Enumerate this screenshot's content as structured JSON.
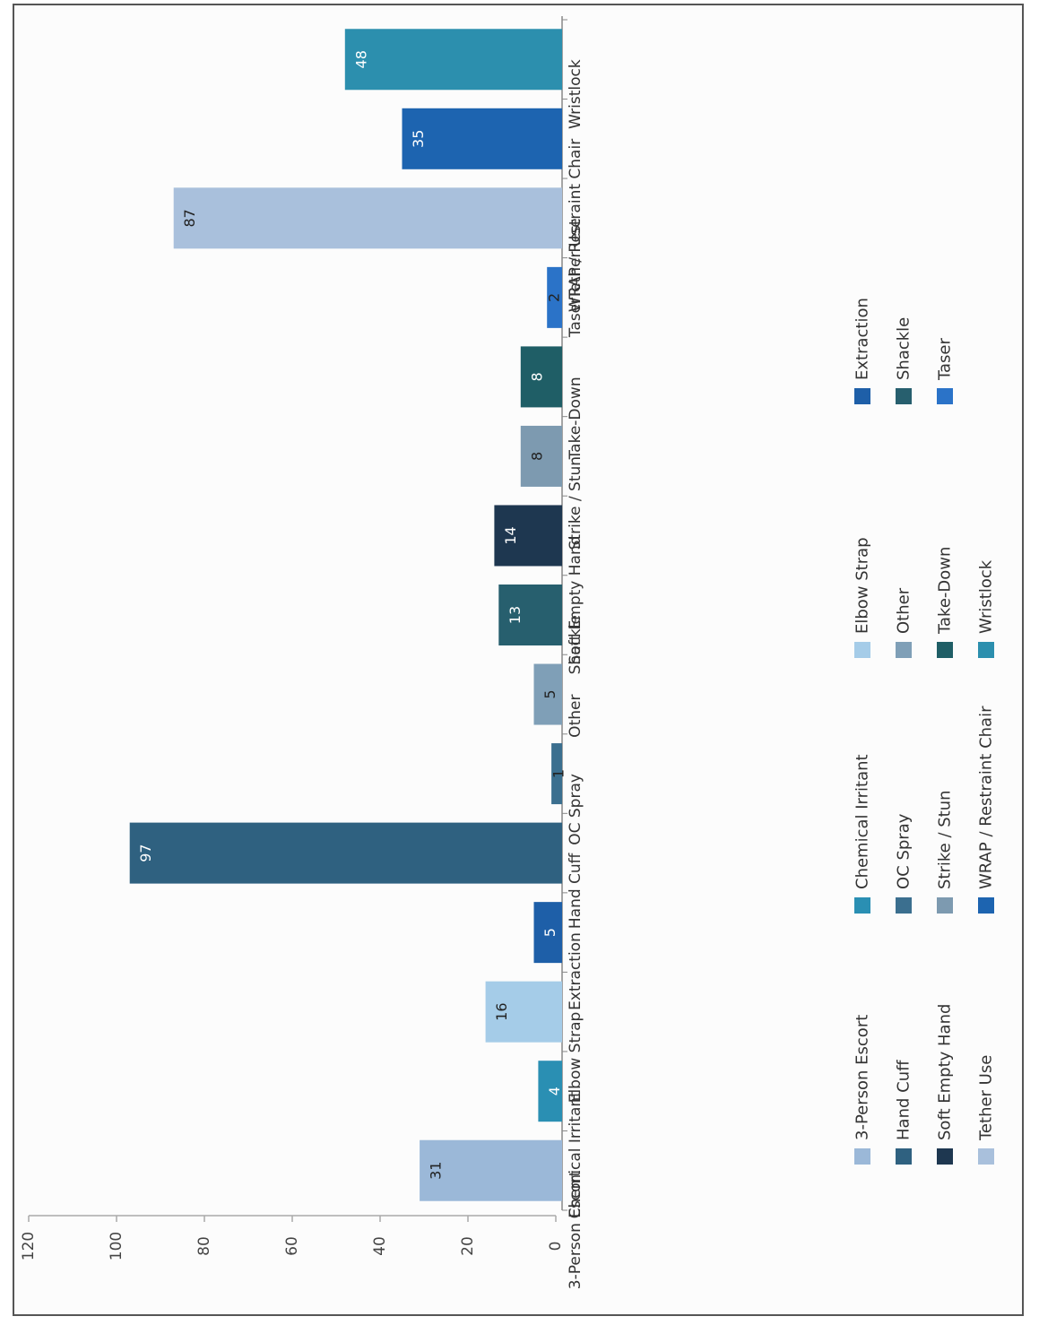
{
  "chart_data": {
    "type": "bar",
    "orientation": "rotated-90",
    "categories": [
      "3-Person Escort",
      "Chemical Irritant",
      "Elbow Strap",
      "Extraction",
      "Hand Cuff",
      "OC Spray",
      "Other",
      "Shackle",
      "Soft Empty Hand",
      "Strike / Stun",
      "Take-Down",
      "Taser",
      "Tether Use",
      "WRAP / Restraint Chair",
      "Wristlock"
    ],
    "values": [
      31,
      4,
      16,
      5,
      97,
      1,
      5,
      13,
      14,
      8,
      8,
      2,
      87,
      35,
      48
    ],
    "value_labels": [
      "31",
      "4",
      "16",
      "5",
      "97",
      "1",
      "5",
      "13",
      "14",
      "8",
      "8",
      "2",
      "87",
      "35",
      "48"
    ],
    "colors": [
      "#9bb8d8",
      "#2a8fb3",
      "#a5cce8",
      "#1e5fa8",
      "#2f6180",
      "#3b6f8f",
      "#7f9fb7",
      "#275f6e",
      "#1e3750",
      "#7d9ab0",
      "#1f5e66",
      "#2b73c8",
      "#a9c0dc",
      "#1d64b0",
      "#2c8fae"
    ],
    "ylim": [
      0,
      120
    ],
    "yticks": [
      "0",
      "20",
      "40",
      "60",
      "80",
      "100",
      "120"
    ],
    "grid": false,
    "legend_position": "bottom",
    "legend": [
      {
        "label": "3-Person Escort",
        "color": "#9bb8d8"
      },
      {
        "label": "Hand Cuff",
        "color": "#2f6180"
      },
      {
        "label": "Soft Empty Hand",
        "color": "#1e3750"
      },
      {
        "label": "Tether Use",
        "color": "#a9c0dc"
      },
      {
        "label": "Chemical Irritant",
        "color": "#2a8fb3"
      },
      {
        "label": "OC Spray",
        "color": "#3b6f8f"
      },
      {
        "label": "Strike / Stun",
        "color": "#7d9ab0"
      },
      {
        "label": "WRAP / Restraint Chair",
        "color": "#1d64b0"
      },
      {
        "label": "Elbow Strap",
        "color": "#a5cce8"
      },
      {
        "label": "Other",
        "color": "#7f9fb7"
      },
      {
        "label": "Take-Down",
        "color": "#1f5e66"
      },
      {
        "label": "Wristlock",
        "color": "#2c8fae"
      },
      {
        "label": "Extraction",
        "color": "#1e5fa8"
      },
      {
        "label": "Shackle",
        "color": "#275f6e"
      },
      {
        "label": "Taser",
        "color": "#2b73c8"
      }
    ]
  }
}
